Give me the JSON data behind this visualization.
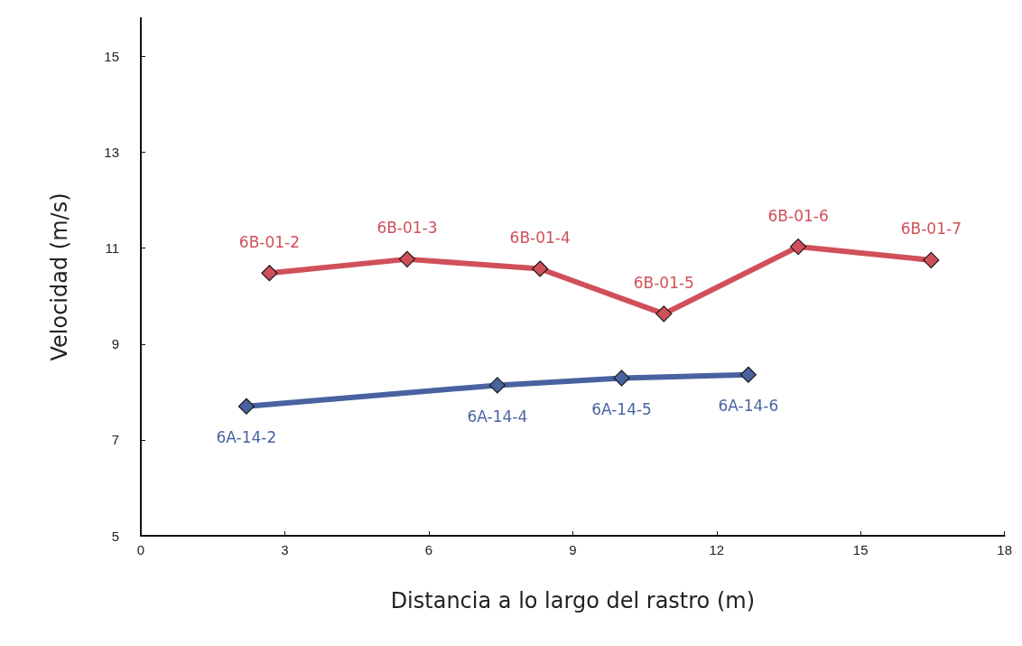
{
  "chart_data": {
    "type": "line",
    "xlabel": "Distancia a lo largo del rastro (m)",
    "ylabel": "Velocidad (m/s)",
    "xlim": [
      0,
      18
    ],
    "xticks": [
      0,
      3,
      6,
      9,
      12,
      15,
      18
    ],
    "ylim": [
      5,
      15.8
    ],
    "yticks": [
      5,
      7,
      9,
      11,
      13,
      15
    ],
    "grid": false,
    "marker": "diamond",
    "line_style": "solid",
    "series": [
      {
        "color": "#d0505a",
        "x": [
          2.68,
          5.55,
          8.32,
          10.9,
          13.7,
          16.47
        ],
        "values": [
          10.48,
          10.77,
          10.57,
          9.63,
          11.03,
          10.75
        ]
      },
      {
        "color": "#4a62a0",
        "x": [
          2.2,
          7.43,
          10.02,
          12.66
        ],
        "values": [
          7.7,
          8.14,
          8.29,
          8.36
        ]
      }
    ],
    "annotations": [
      {
        "text": "6B-01-2",
        "x": 2.68,
        "y": 10.48
      },
      {
        "text": "6B-01-3",
        "x": 5.55,
        "y": 10.77
      },
      {
        "text": "6B-01-4",
        "x": 8.32,
        "y": 10.57
      },
      {
        "text": "6B-01-5",
        "x": 10.9,
        "y": 9.63
      },
      {
        "text": "6B-01-6",
        "x": 13.7,
        "y": 11.03
      },
      {
        "text": "6B-01-7",
        "x": 16.47,
        "y": 10.75
      },
      {
        "text": "6A-14-2",
        "x": 2.2,
        "y": 7.7
      },
      {
        "text": "6A-14-4",
        "x": 7.43,
        "y": 8.14
      },
      {
        "text": "6A-14-5",
        "x": 10.02,
        "y": 8.29
      },
      {
        "text": "6A-14-6",
        "x": 12.66,
        "y": 8.36
      }
    ]
  }
}
